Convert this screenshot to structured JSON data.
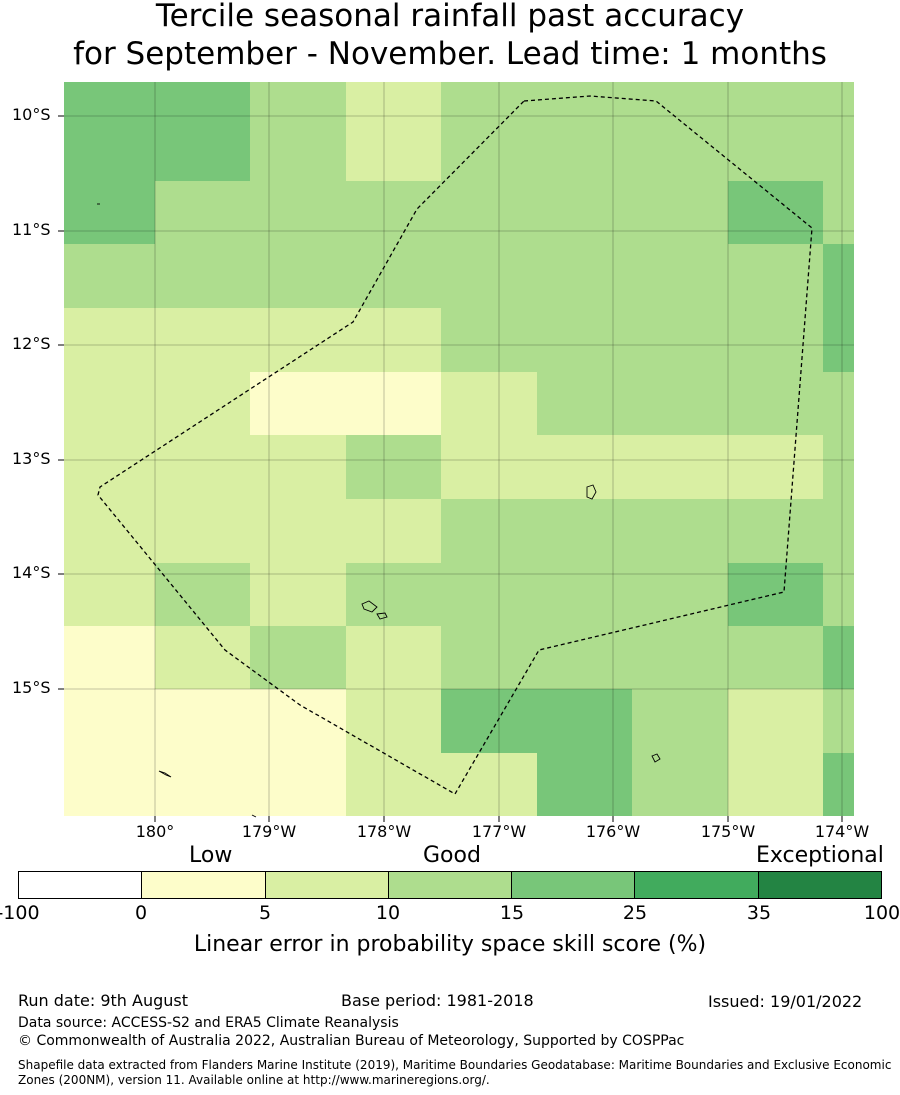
{
  "title": {
    "line1": "Tercile seasonal rainfall past accuracy",
    "line2": "for September - November. Lead time: 1 months"
  },
  "map": {
    "lat_labels": [
      "10°S",
      "11°S",
      "12°S",
      "13°S",
      "14°S",
      "15°S"
    ],
    "lon_labels": [
      "180°",
      "179°W",
      "178°W",
      "177°W",
      "176°W",
      "175°W",
      "174°W"
    ],
    "grid_levels": [
      [
        3,
        3,
        2,
        1,
        2,
        2,
        2,
        2,
        2
      ],
      [
        3,
        2,
        2,
        2,
        2,
        2,
        2,
        3,
        2
      ],
      [
        2,
        2,
        2,
        2,
        2,
        2,
        2,
        2,
        3
      ],
      [
        1,
        1,
        1,
        1,
        2,
        2,
        2,
        2,
        3
      ],
      [
        1,
        1,
        0,
        0,
        1,
        2,
        2,
        2,
        2
      ],
      [
        1,
        1,
        1,
        2,
        1,
        1,
        1,
        1,
        2
      ],
      [
        1,
        1,
        1,
        1,
        2,
        2,
        2,
        2,
        2
      ],
      [
        1,
        2,
        1,
        2,
        2,
        2,
        2,
        3,
        2
      ],
      [
        0,
        1,
        2,
        1,
        2,
        2,
        2,
        2,
        3
      ],
      [
        0,
        0,
        0,
        1,
        3,
        3,
        2,
        1,
        2
      ],
      [
        0,
        0,
        0,
        1,
        1,
        3,
        2,
        1,
        3
      ]
    ]
  },
  "colorbar": {
    "categories": [
      "Low",
      "Good",
      "Exceptional"
    ],
    "ticks": [
      "-100",
      "0",
      "5",
      "10",
      "15",
      "25",
      "35",
      "100"
    ],
    "colors": [
      "#ffffff",
      "#fdfdca",
      "#d9efa3",
      "#aedd8e",
      "#78c679",
      "#41ab5d",
      "#238443"
    ],
    "label": "Linear error in probability space skill score (%)"
  },
  "footer": {
    "run_date": "Run date: 9th August",
    "base_period": "Base period: 1981-2018",
    "issued": "Issued: 19/01/2022",
    "data_source": "Data source: ACCESS-S2 and ERA5 Climate Reanalysis",
    "copyright": "© Commonwealth of Australia 2022, Australian Bureau of Meteorology, Supported by COSPPac",
    "shapefile": "Shapefile data extracted from Flanders Marine Institute (2019), Maritime Boundaries Geodatabase: Maritime Boundaries and Exclusive Economic Zones (200NM), version 11. Available online at http://www.marineregions.org/."
  }
}
